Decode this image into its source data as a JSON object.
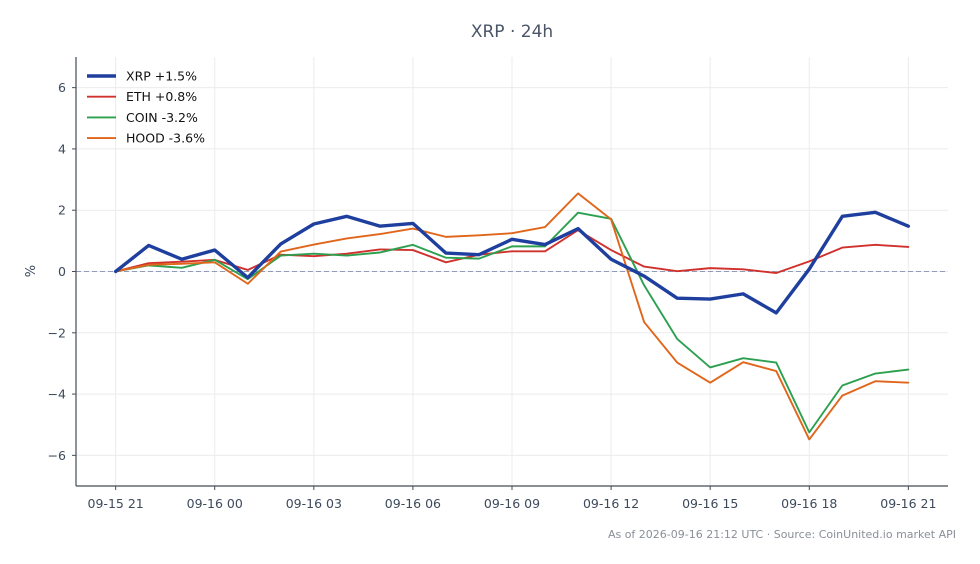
{
  "chart_data": {
    "type": "line",
    "title": "XRP · 24h",
    "ylabel": "%",
    "xlabel": "",
    "ylim": [
      -7,
      7
    ],
    "yticks": [
      -6,
      -4,
      -2,
      0,
      2,
      4,
      6
    ],
    "ytick_labels": [
      "−6",
      "−4",
      "−2",
      "0",
      "2",
      "4",
      "6"
    ],
    "xlim": [
      -1.2,
      25.2
    ],
    "xtick_positions": [
      0,
      3,
      6,
      9,
      12,
      15,
      18,
      21,
      24
    ],
    "xtick_labels": [
      "09-15 21",
      "09-16 00",
      "09-16 03",
      "09-16 06",
      "09-16 09",
      "09-16 12",
      "09-16 15",
      "09-16 18",
      "09-16 21"
    ],
    "grid": true,
    "zero_line": true,
    "legend_position": "top-left",
    "series": [
      {
        "name": "XRP +1.5%",
        "color": "#1f3f9e",
        "values": [
          0,
          0.85,
          0.4,
          0.7,
          -0.2,
          0.9,
          1.55,
          1.8,
          1.48,
          1.57,
          0.6,
          0.55,
          1.05,
          0.88,
          1.4,
          0.4,
          -0.15,
          -0.87,
          -0.9,
          -0.73,
          -1.35,
          0.08,
          1.8,
          1.93,
          1.48
        ]
      },
      {
        "name": "ETH +0.8%",
        "color": "#d0312d",
        "values": [
          0,
          0.27,
          0.32,
          0.38,
          0.05,
          0.55,
          0.5,
          0.58,
          0.72,
          0.7,
          0.3,
          0.55,
          0.66,
          0.66,
          1.35,
          0.7,
          0.16,
          0.01,
          0.11,
          0.07,
          -0.05,
          0.33,
          0.78,
          0.87,
          0.8
        ]
      },
      {
        "name": "COIN -3.2%",
        "color": "#2ca04f",
        "values": [
          0,
          0.2,
          0.12,
          0.38,
          -0.25,
          0.52,
          0.58,
          0.52,
          0.62,
          0.87,
          0.45,
          0.42,
          0.82,
          0.82,
          1.92,
          1.72,
          -0.45,
          -2.2,
          -3.13,
          -2.83,
          -2.97,
          -5.25,
          -3.72,
          -3.33,
          -3.2
        ]
      },
      {
        "name": "HOOD -3.6%",
        "color": "#e0661b",
        "values": [
          0,
          0.22,
          0.25,
          0.3,
          -0.4,
          0.65,
          0.88,
          1.08,
          1.22,
          1.4,
          1.13,
          1.18,
          1.25,
          1.45,
          2.55,
          1.7,
          -1.65,
          -2.97,
          -3.63,
          -2.96,
          -3.25,
          -5.48,
          -4.05,
          -3.58,
          -3.63
        ]
      }
    ]
  },
  "footnote": "As of 2026-09-16 21:12 UTC · Source: CoinUnited.io market API"
}
